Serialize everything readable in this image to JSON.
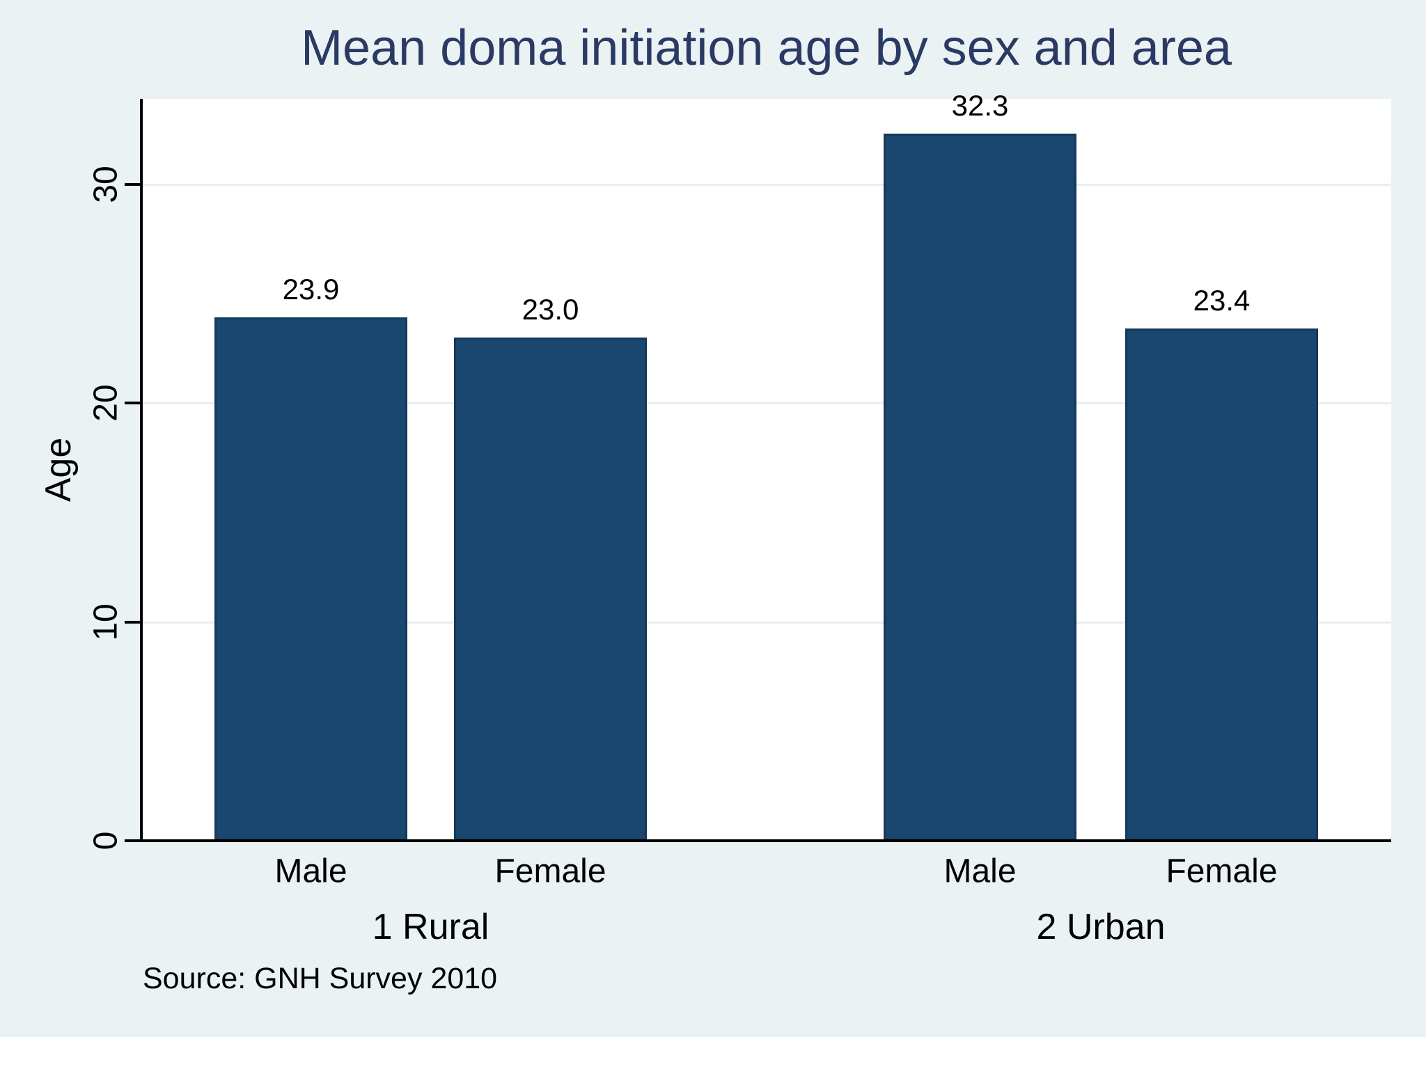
{
  "title": "Mean doma initiation age by sex and area",
  "source_note": "Source: GNH Survey 2010",
  "colors": {
    "figure_background": "#eaf2f3",
    "plot_background": "#ffffff",
    "bar_fill": "#1a476f",
    "bar_outline": "#14395c",
    "title_text": "#2b3a64",
    "gridline": "#e9eef0",
    "axis_line": "#000000",
    "tick_text": "#000000"
  },
  "chart_data": {
    "type": "bar",
    "title": "Mean doma initiation age by sex and area",
    "xlabel": "",
    "ylabel": "Age",
    "ylim": [
      0,
      33.9
    ],
    "yticks": [
      0,
      10,
      20,
      30
    ],
    "grid": true,
    "legend": "none",
    "groups": [
      {
        "label": "1 Rural",
        "categories": [
          "Male",
          "Female"
        ],
        "values": [
          23.9,
          23.0
        ],
        "value_labels": [
          "23.9",
          "23.0"
        ]
      },
      {
        "label": "2 Urban",
        "categories": [
          "Male",
          "Female"
        ],
        "values": [
          32.3,
          23.4
        ],
        "value_labels": [
          "32.3",
          "23.4"
        ]
      }
    ],
    "source": "Source: GNH Survey 2010"
  }
}
